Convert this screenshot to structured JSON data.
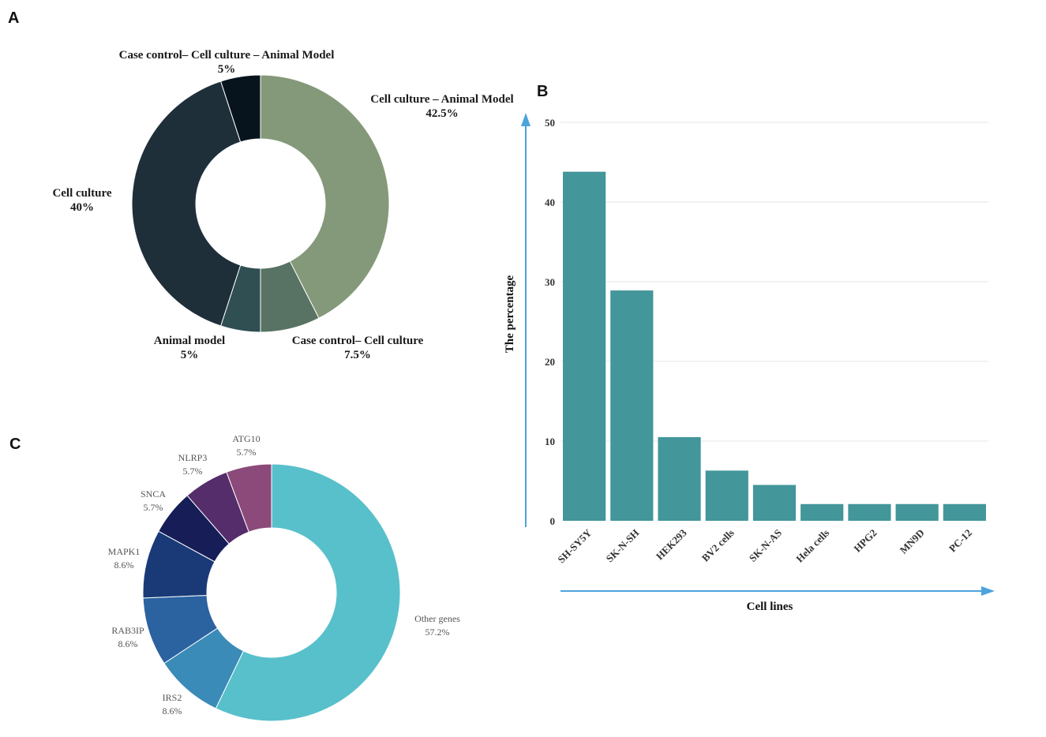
{
  "panels": {
    "a": "A",
    "b": "B",
    "c": "C"
  },
  "colors": {
    "donutA": [
      "#84997a",
      "#587363",
      "#2f4f52",
      "#1e2f3a",
      "#07141d"
    ],
    "donutC": [
      "#58c0cb",
      "#3a8bb7",
      "#2b62a0",
      "#1a3a77",
      "#161d57",
      "#542d6a",
      "#8b4a7a"
    ],
    "bar": "#43969a",
    "arrow": "#4da3dc",
    "grid": "#e4e4e4"
  },
  "chart_data": [
    {
      "type": "pie",
      "subtype": "donut",
      "panel": "A",
      "slices": [
        {
          "label": "Cell culture – Animal Model",
          "value": 42.5,
          "value_label": "42.5%"
        },
        {
          "label": "Case control– Cell culture",
          "value": 7.5,
          "value_label": "7.5%"
        },
        {
          "label": "Animal model",
          "value": 5,
          "value_label": "5%"
        },
        {
          "label": "Cell culture",
          "value": 40,
          "value_label": "40%"
        },
        {
          "label": "Case control– Cell culture – Animal Model",
          "value": 5,
          "value_label": "5%"
        }
      ]
    },
    {
      "type": "bar",
      "panel": "B",
      "categories": [
        "SH-SY5Y",
        "SK-N-SH",
        "HEK293",
        "BV2 cells",
        "SK-N-AS",
        "Hela cells",
        "HPG2",
        "MN9D",
        "PC-12"
      ],
      "values": [
        43.8,
        28.9,
        10.5,
        6.3,
        4.5,
        2.1,
        2.1,
        2.1,
        2.1
      ],
      "yticks": [
        "0",
        "10",
        "20",
        "30",
        "40",
        "50"
      ],
      "ylim": [
        0,
        50
      ],
      "xlabel": "Cell lines",
      "ylabel": "The percentage",
      "grid": true
    },
    {
      "type": "pie",
      "subtype": "donut",
      "panel": "C",
      "slices": [
        {
          "label": "Other genes",
          "value": 57.2,
          "value_label": "57.2%"
        },
        {
          "label": "IRS2",
          "value": 8.6,
          "value_label": "8.6%"
        },
        {
          "label": "RAB3IP",
          "value": 8.6,
          "value_label": "8.6%"
        },
        {
          "label": "MAPK1",
          "value": 8.6,
          "value_label": "8.6%"
        },
        {
          "label": "SNCA",
          "value": 5.7,
          "value_label": "5.7%"
        },
        {
          "label": "NLRP3",
          "value": 5.7,
          "value_label": "5.7%"
        },
        {
          "label": "ATG10",
          "value": 5.7,
          "value_label": "5.7%"
        }
      ]
    }
  ]
}
